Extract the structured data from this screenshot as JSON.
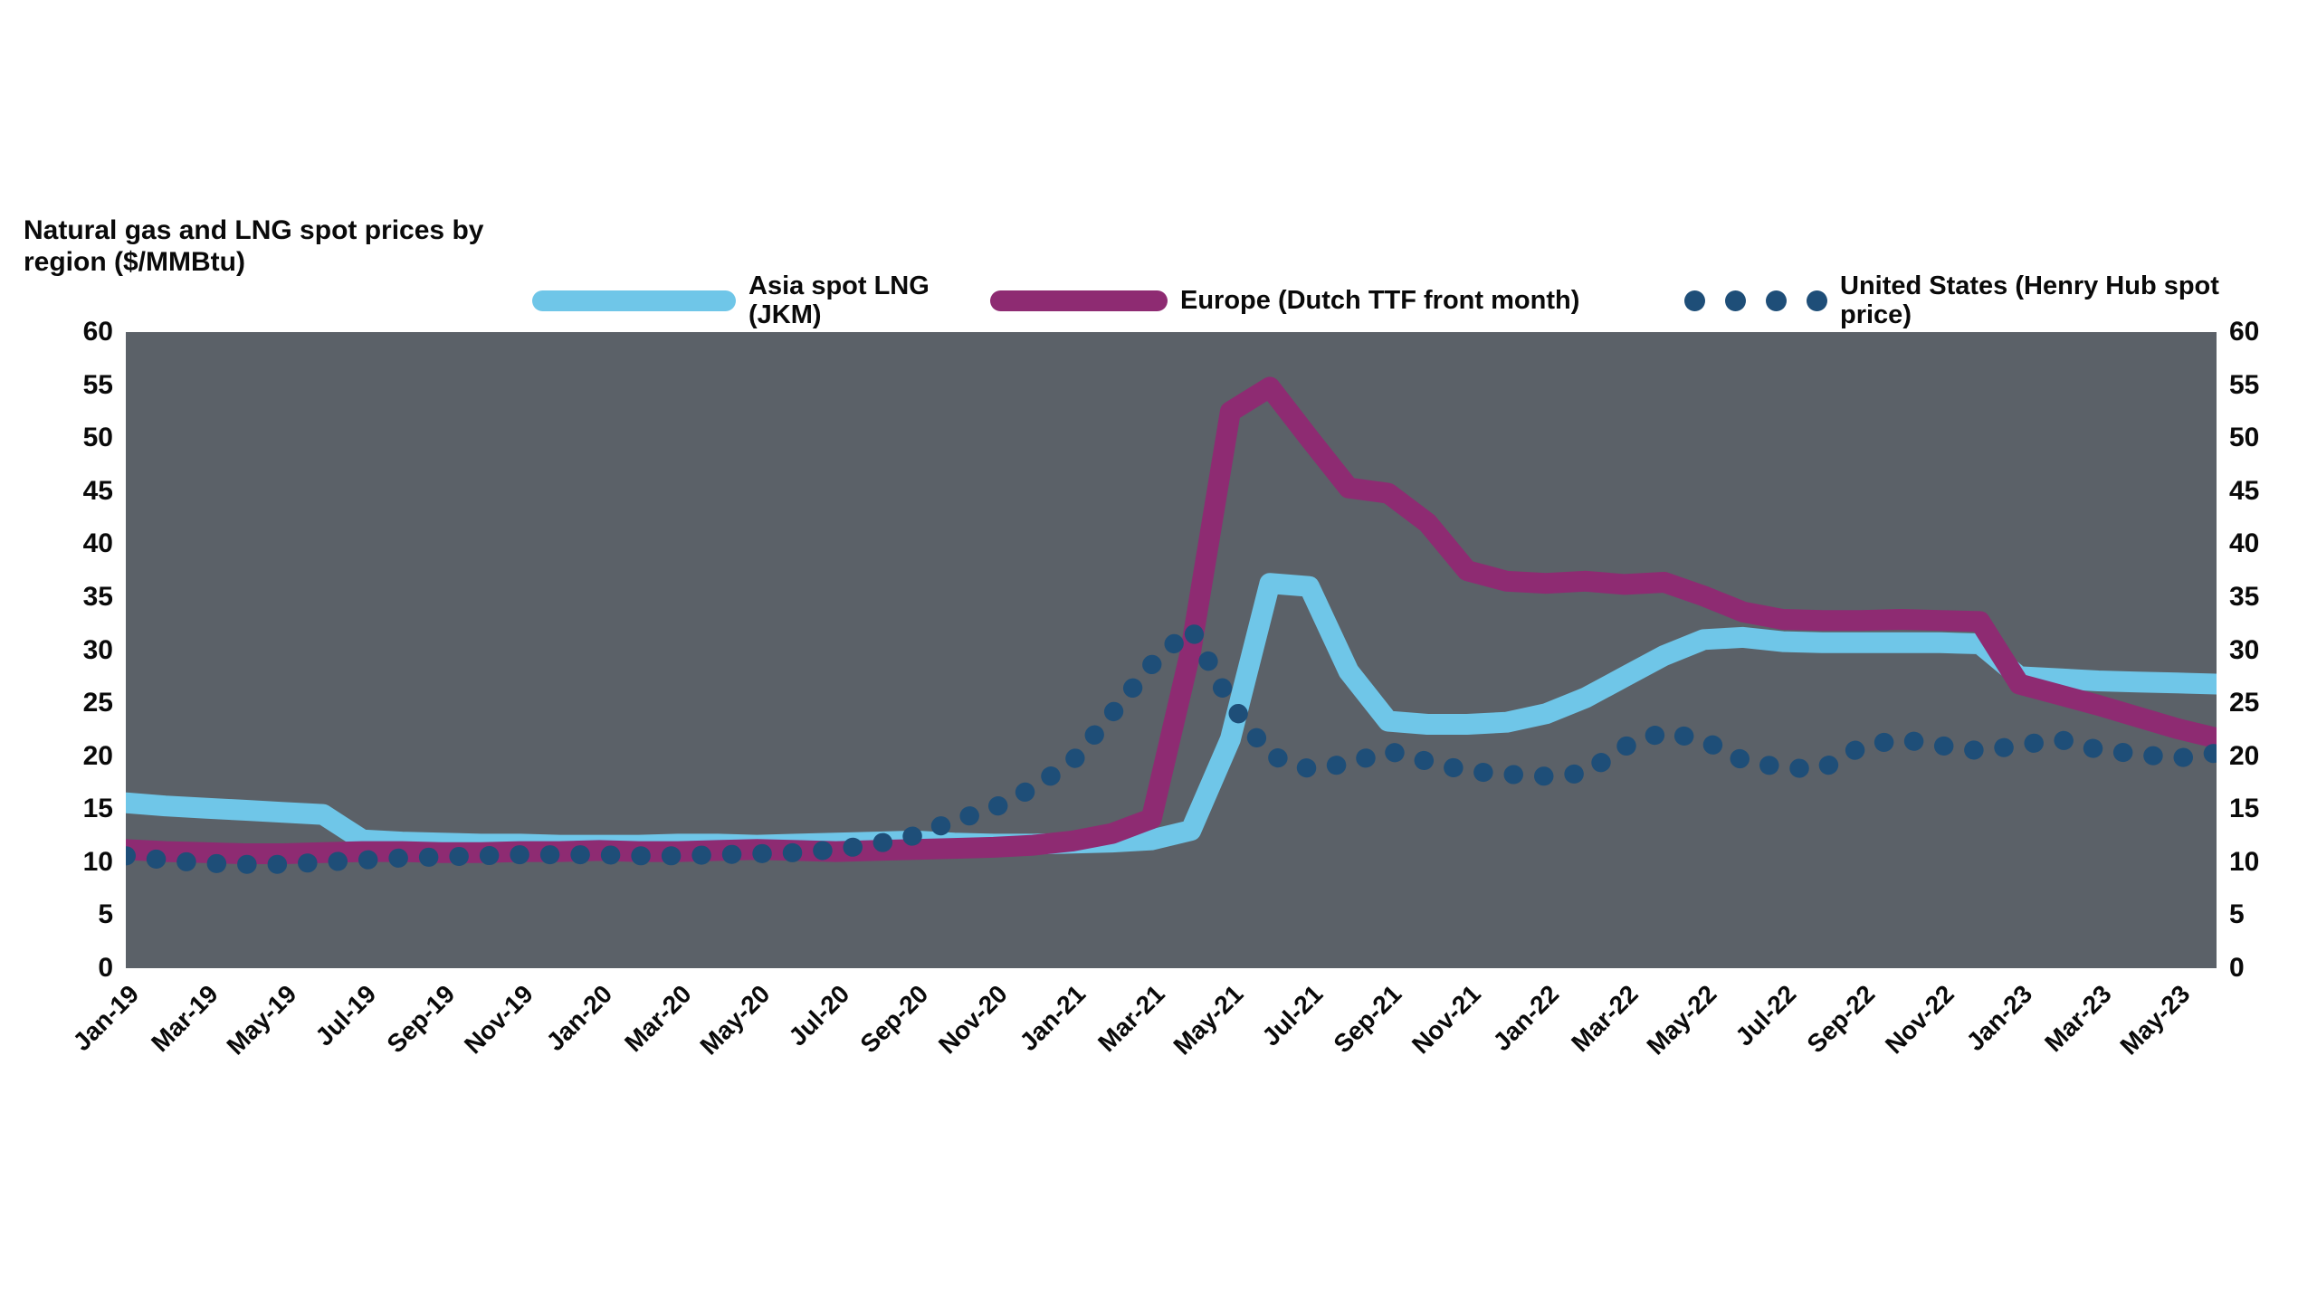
{
  "page": {
    "background_color": "#ffffff",
    "text_color": "#0a0a0a"
  },
  "chart": {
    "title": "Natural gas and LNG spot prices by region ($/MMBtu)"
  },
  "colors": {
    "plot_background": "#5B6168",
    "series_light_blue": "#6FC6E8",
    "series_magenta": "#8E2B72",
    "series_dark_blue": "#1E4E78"
  },
  "chart_data": {
    "type": "line",
    "title": "Natural gas and LNG spot prices by region ($/MMBtu)",
    "xlabel": "",
    "ylabel": "$/MMBtu",
    "ylim": [
      0,
      60
    ],
    "yticks": [
      0,
      5,
      10,
      15,
      20,
      25,
      30,
      35,
      40,
      45,
      50,
      55,
      60
    ],
    "xtick_every": 2,
    "grid": false,
    "legend_position": "top",
    "plot_background": "#5B6168",
    "x": [
      "Jan-19",
      "Feb-19",
      "Mar-19",
      "Apr-19",
      "May-19",
      "Jun-19",
      "Jul-19",
      "Aug-19",
      "Sep-19",
      "Oct-19",
      "Nov-19",
      "Dec-19",
      "Jan-20",
      "Feb-20",
      "Mar-20",
      "Apr-20",
      "May-20",
      "Jun-20",
      "Jul-20",
      "Aug-20",
      "Sep-20",
      "Oct-20",
      "Nov-20",
      "Dec-20",
      "Jan-21",
      "Feb-21",
      "Mar-21",
      "Apr-21",
      "May-21",
      "Jun-21",
      "Jul-21",
      "Aug-21",
      "Sep-21",
      "Oct-21",
      "Nov-21",
      "Dec-21",
      "Jan-22",
      "Feb-22",
      "Mar-22",
      "Apr-22",
      "May-22",
      "Jun-22",
      "Jul-22",
      "Aug-22",
      "Sep-22",
      "Oct-22",
      "Nov-22",
      "Dec-22",
      "Jan-23",
      "Feb-23",
      "Mar-23",
      "Apr-23",
      "May-23",
      "Jun-23"
    ],
    "series": [
      {
        "name": "Asia spot LNG (JKM)",
        "color": "#6FC6E8",
        "style": "solid",
        "values": [
          15.6,
          15.3,
          15.1,
          14.9,
          14.7,
          14.5,
          12.1,
          11.9,
          11.8,
          11.7,
          11.7,
          11.6,
          11.6,
          11.6,
          11.7,
          11.7,
          11.6,
          11.7,
          11.8,
          11.9,
          12.0,
          11.8,
          11.7,
          11.7,
          11.8,
          11.9,
          12.1,
          13.0,
          21.6,
          36.3,
          36.0,
          28.0,
          23.3,
          23.0,
          23.0,
          23.2,
          24.0,
          25.5,
          27.5,
          29.5,
          31.0,
          31.2,
          30.8,
          30.7,
          30.7,
          30.7,
          30.7,
          30.6,
          27.5,
          27.3,
          27.1,
          27.0,
          26.9,
          26.8
        ]
      },
      {
        "name": "Europe (Dutch TTF front month)",
        "color": "#8E2B72",
        "style": "solid",
        "values": [
          11.2,
          11.0,
          10.9,
          10.8,
          10.8,
          10.9,
          11.0,
          11.0,
          10.9,
          10.9,
          11.0,
          11.0,
          11.1,
          11.0,
          11.0,
          11.1,
          11.2,
          11.1,
          11.0,
          11.1,
          11.2,
          11.3,
          11.4,
          11.6,
          12.0,
          12.7,
          14.1,
          30.0,
          52.5,
          54.8,
          50.0,
          45.3,
          44.8,
          42.0,
          37.5,
          36.5,
          36.3,
          36.5,
          36.2,
          36.4,
          35.1,
          33.6,
          32.9,
          32.8,
          32.8,
          32.9,
          32.8,
          32.7,
          26.8,
          25.8,
          24.8,
          23.7,
          22.6,
          21.7
        ]
      },
      {
        "name": "United States (Henry Hub spot price)",
        "color": "#1E4E78",
        "style": "dotted",
        "values": [
          10.6,
          10.2,
          9.9,
          9.8,
          9.8,
          10.0,
          10.2,
          10.4,
          10.5,
          10.6,
          10.7,
          10.7,
          10.7,
          10.6,
          10.6,
          10.7,
          10.8,
          10.9,
          11.2,
          11.7,
          12.5,
          13.9,
          15.1,
          17.0,
          19.5,
          24.0,
          28.6,
          32.1,
          25.0,
          20.1,
          18.8,
          19.3,
          20.5,
          19.5,
          18.6,
          18.3,
          18.1,
          18.4,
          20.9,
          22.3,
          21.5,
          19.6,
          18.9,
          18.8,
          20.9,
          21.6,
          21.0,
          20.5,
          21.0,
          21.6,
          20.6,
          20.2,
          19.8,
          20.3
        ]
      }
    ]
  }
}
